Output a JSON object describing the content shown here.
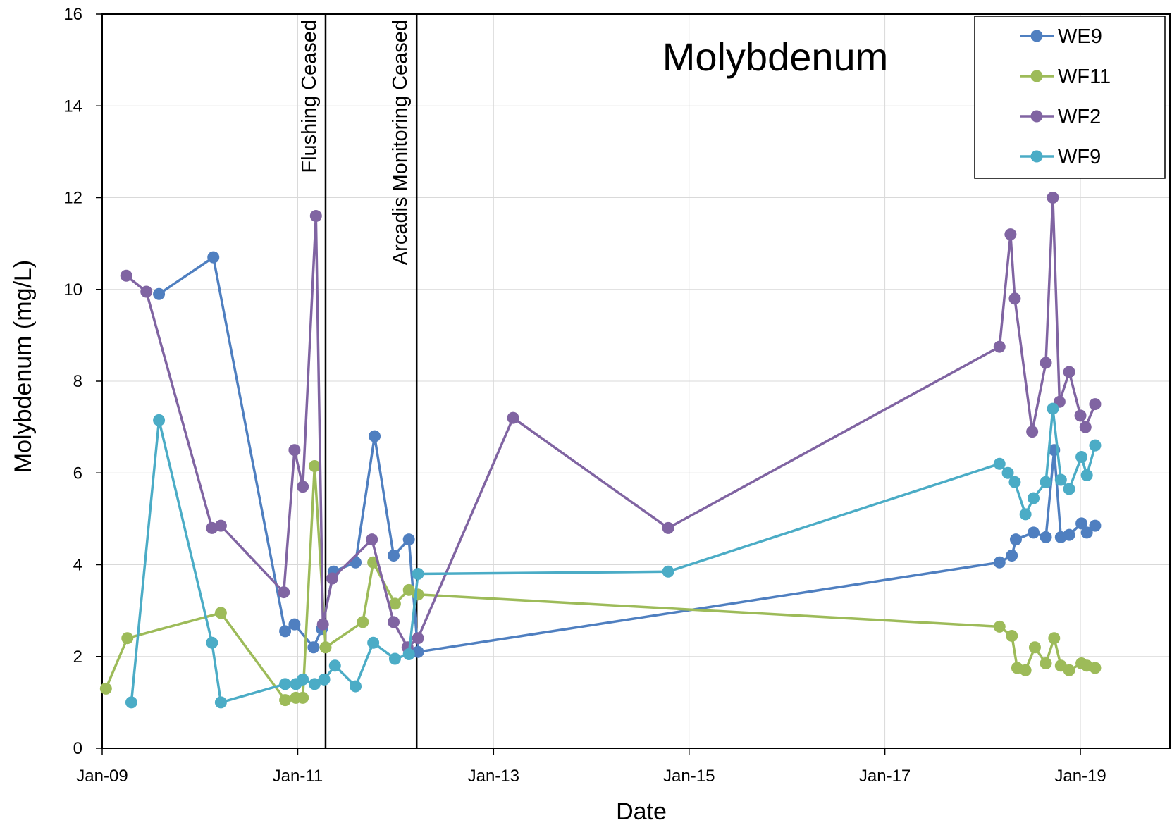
{
  "chart_data": {
    "type": "line",
    "title": "Molybdenum",
    "xlabel": "Date",
    "ylabel": "Molybdenum (mg/L)",
    "x_axis_type": "date",
    "xlim": [
      "2009-01-01",
      "2019-12-01"
    ],
    "ylim": [
      0,
      16
    ],
    "y_ticks": [
      0,
      2,
      4,
      6,
      8,
      10,
      12,
      14,
      16
    ],
    "x_ticks": [
      {
        "date": "2009-01-01",
        "label": "Jan-09"
      },
      {
        "date": "2011-01-01",
        "label": "Jan-11"
      },
      {
        "date": "2013-01-01",
        "label": "Jan-13"
      },
      {
        "date": "2015-01-01",
        "label": "Jan-15"
      },
      {
        "date": "2017-01-01",
        "label": "Jan-17"
      },
      {
        "date": "2019-01-01",
        "label": "Jan-19"
      }
    ],
    "grid": true,
    "legend_position": "top-right",
    "annotations": [
      {
        "type": "vline",
        "date": "2011-04-15",
        "label": "Flushing Ceased"
      },
      {
        "type": "vline",
        "date": "2012-03-20",
        "label": "Arcadis  Monitoring Ceased"
      }
    ],
    "series": [
      {
        "name": "WE9",
        "color": "#4f7fc0",
        "points": [
          [
            "2009-08-01",
            9.9
          ],
          [
            "2010-02-20",
            10.7
          ],
          [
            "2010-11-15",
            2.55
          ],
          [
            "2010-12-20",
            2.7
          ],
          [
            "2011-03-01",
            2.2
          ],
          [
            "2011-04-01",
            2.6
          ],
          [
            "2011-05-15",
            3.85
          ],
          [
            "2011-08-05",
            4.05
          ],
          [
            "2011-10-15",
            6.8
          ],
          [
            "2011-12-25",
            4.2
          ],
          [
            "2012-02-20",
            4.55
          ],
          [
            "2012-03-25",
            2.1
          ],
          [
            "2018-03-05",
            4.05
          ],
          [
            "2018-04-20",
            4.2
          ],
          [
            "2018-05-05",
            4.55
          ],
          [
            "2018-07-10",
            4.7
          ],
          [
            "2018-08-25",
            4.6
          ],
          [
            "2018-09-25",
            6.5
          ],
          [
            "2018-10-20",
            4.6
          ],
          [
            "2018-11-20",
            4.65
          ],
          [
            "2019-01-05",
            4.9
          ],
          [
            "2019-01-25",
            4.7
          ],
          [
            "2019-02-25",
            4.85
          ]
        ]
      },
      {
        "name": "WF11",
        "color": "#9dbb59",
        "points": [
          [
            "2009-01-15",
            1.3
          ],
          [
            "2009-04-05",
            2.4
          ],
          [
            "2010-03-20",
            2.95
          ],
          [
            "2010-11-15",
            1.05
          ],
          [
            "2010-12-25",
            1.1
          ],
          [
            "2011-01-20",
            1.1
          ],
          [
            "2011-03-05",
            6.15
          ],
          [
            "2011-04-15",
            2.2
          ],
          [
            "2011-09-01",
            2.75
          ],
          [
            "2011-10-10",
            4.05
          ],
          [
            "2011-12-30",
            3.15
          ],
          [
            "2012-02-20",
            3.45
          ],
          [
            "2012-03-25",
            3.35
          ],
          [
            "2018-03-05",
            2.65
          ],
          [
            "2018-04-20",
            2.45
          ],
          [
            "2018-05-10",
            1.75
          ],
          [
            "2018-06-10",
            1.7
          ],
          [
            "2018-07-15",
            2.2
          ],
          [
            "2018-08-25",
            1.85
          ],
          [
            "2018-09-25",
            2.4
          ],
          [
            "2018-10-20",
            1.8
          ],
          [
            "2018-11-20",
            1.7
          ],
          [
            "2019-01-05",
            1.85
          ],
          [
            "2019-01-25",
            1.8
          ],
          [
            "2019-02-25",
            1.75
          ]
        ]
      },
      {
        "name": "WF2",
        "color": "#8064a2",
        "points": [
          [
            "2009-04-01",
            10.3
          ],
          [
            "2009-06-15",
            9.95
          ],
          [
            "2010-02-15",
            4.8
          ],
          [
            "2010-03-20",
            4.85
          ],
          [
            "2010-11-10",
            3.4
          ],
          [
            "2010-12-20",
            6.5
          ],
          [
            "2011-01-20",
            5.7
          ],
          [
            "2011-03-10",
            11.6
          ],
          [
            "2011-04-05",
            2.7
          ],
          [
            "2011-05-10",
            3.7
          ],
          [
            "2011-10-05",
            4.55
          ],
          [
            "2011-12-25",
            2.75
          ],
          [
            "2012-02-15",
            2.2
          ],
          [
            "2012-03-25",
            2.4
          ],
          [
            "2013-03-15",
            7.2
          ],
          [
            "2014-10-15",
            4.8
          ],
          [
            "2018-03-05",
            8.75
          ],
          [
            "2018-04-15",
            11.2
          ],
          [
            "2018-05-01",
            9.8
          ],
          [
            "2018-07-05",
            6.9
          ],
          [
            "2018-08-25",
            8.4
          ],
          [
            "2018-09-20",
            12.0
          ],
          [
            "2018-10-15",
            7.55
          ],
          [
            "2018-11-20",
            8.2
          ],
          [
            "2019-01-01",
            7.25
          ],
          [
            "2019-01-20",
            7.0
          ],
          [
            "2019-02-25",
            7.5
          ]
        ]
      },
      {
        "name": "WF9",
        "color": "#4bacc6",
        "points": [
          [
            "2009-04-20",
            1.0
          ],
          [
            "2009-08-01",
            7.15
          ],
          [
            "2010-02-15",
            2.3
          ],
          [
            "2010-03-20",
            1.0
          ],
          [
            "2010-11-15",
            1.4
          ],
          [
            "2010-12-25",
            1.4
          ],
          [
            "2011-01-20",
            1.5
          ],
          [
            "2011-03-05",
            1.4
          ],
          [
            "2011-04-10",
            1.5
          ],
          [
            "2011-05-20",
            1.8
          ],
          [
            "2011-08-05",
            1.35
          ],
          [
            "2011-10-10",
            2.3
          ],
          [
            "2011-12-30",
            1.95
          ],
          [
            "2012-02-20",
            2.05
          ],
          [
            "2012-03-25",
            3.8
          ],
          [
            "2014-10-15",
            3.85
          ],
          [
            "2018-03-05",
            6.2
          ],
          [
            "2018-04-05",
            6.0
          ],
          [
            "2018-05-01",
            5.8
          ],
          [
            "2018-06-10",
            5.1
          ],
          [
            "2018-07-10",
            5.45
          ],
          [
            "2018-08-25",
            5.8
          ],
          [
            "2018-09-20",
            7.4
          ],
          [
            "2018-10-20",
            5.85
          ],
          [
            "2018-11-20",
            5.65
          ],
          [
            "2019-01-05",
            6.35
          ],
          [
            "2019-01-25",
            5.95
          ],
          [
            "2019-02-25",
            6.6
          ]
        ]
      }
    ]
  }
}
